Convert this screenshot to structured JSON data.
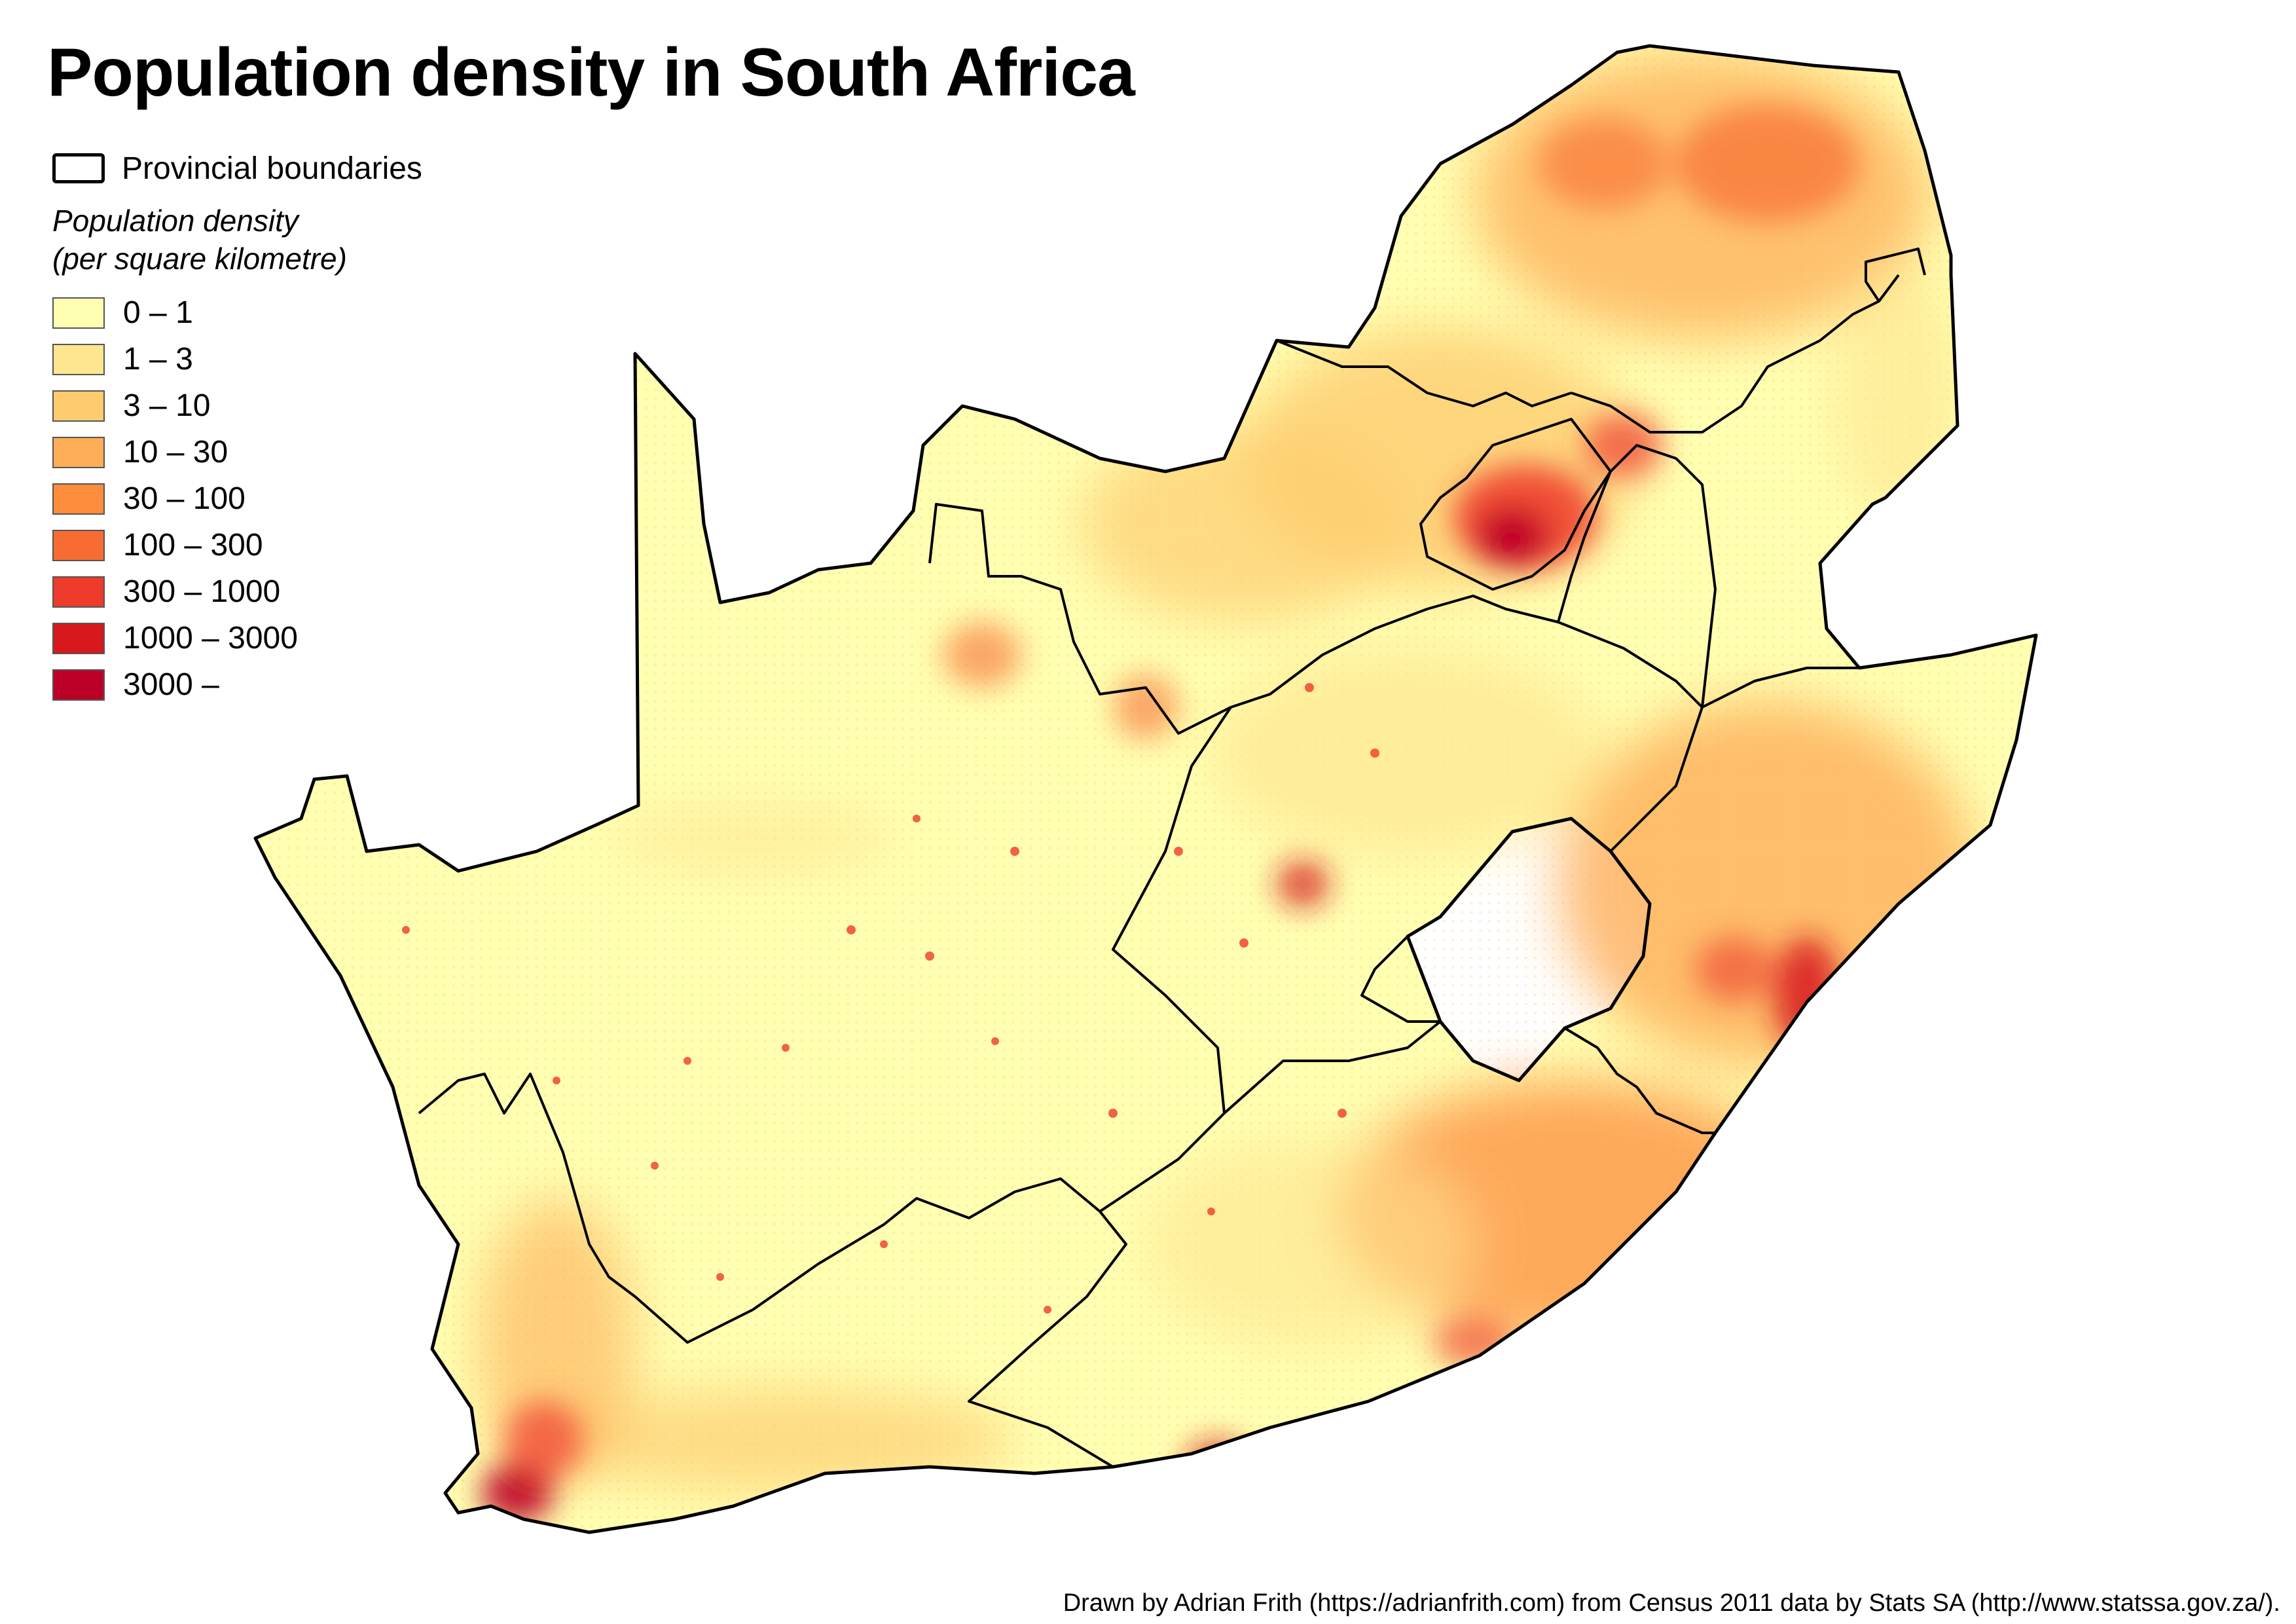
{
  "title": "Population density in South Africa",
  "legend": {
    "boundary_label": "Provincial boundaries",
    "density_heading_line1": "Population density",
    "density_heading_line2": "(per square kilometre)",
    "classes": [
      {
        "label": "0 – 1",
        "color": "#ffffb2"
      },
      {
        "label": "1 – 3",
        "color": "#fee590"
      },
      {
        "label": "3 – 10",
        "color": "#fecc6f"
      },
      {
        "label": "10 – 30",
        "color": "#feae57"
      },
      {
        "label": "30 – 100",
        "color": "#fd8d3c"
      },
      {
        "label": "100 – 300",
        "color": "#f86c33"
      },
      {
        "label": "300 – 1000",
        "color": "#ef3b2c"
      },
      {
        "label": "1000 – 3000",
        "color": "#d7191c"
      },
      {
        "label": "3000 –",
        "color": "#bd0026"
      }
    ]
  },
  "credit": "Drawn by Adrian Frith (https://adrianfrith.com) from Census 2011 data by Stats SA (http://www.statssa.gov.za/)."
}
